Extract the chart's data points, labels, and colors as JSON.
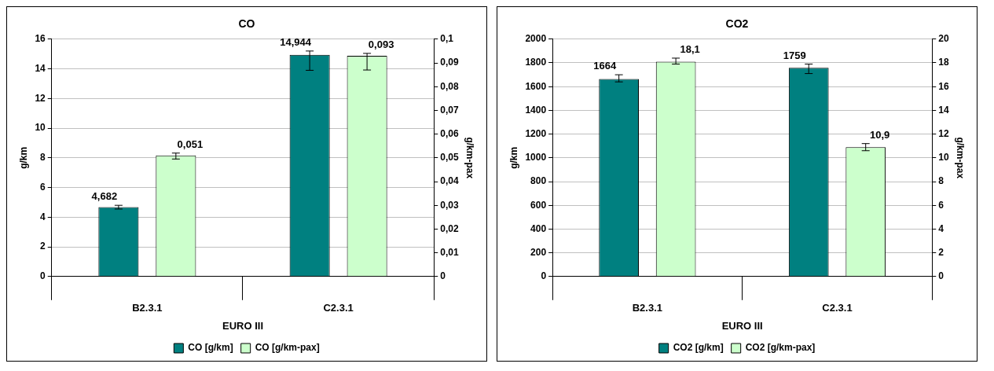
{
  "chart_data": [
    {
      "type": "bar",
      "title": "CO",
      "xlabel": "EURO III",
      "ylabel": "g/km",
      "y2label": "g/km-pax",
      "categories": [
        "B2.3.1",
        "C2.3.1"
      ],
      "series": [
        {
          "name": "CO [g/km]",
          "color": "#008080",
          "values": [
            4.682,
            14.944
          ],
          "value_labels": [
            "4,682",
            "14,944"
          ],
          "errors": [
            [
              4.55,
              4.8
            ],
            [
              13.9,
              15.2
            ]
          ]
        },
        {
          "name": "CO [g/km-pax]",
          "color": "#ccffcc",
          "axis": "y2",
          "values": [
            0.051,
            0.093
          ],
          "value_labels": [
            "0,051",
            "0,093"
          ],
          "errors": [
            [
              0.0495,
              0.052
            ],
            [
              0.087,
              0.094
            ]
          ]
        }
      ],
      "ylim": [
        0,
        16
      ],
      "yticks": [
        0,
        2,
        4,
        6,
        8,
        10,
        12,
        14,
        16
      ],
      "y2lim": [
        0,
        0.1
      ],
      "y2ticks": [
        0,
        {
          "value": 0.01,
          "label": "0,01"
        },
        {
          "value": 0.02,
          "label": "0,02"
        },
        {
          "value": 0.03,
          "label": "0,03"
        },
        {
          "value": 0.04,
          "label": "0,04"
        },
        {
          "value": 0.05,
          "label": "0,05"
        },
        {
          "value": 0.06,
          "label": "0,06"
        },
        {
          "value": 0.07,
          "label": "0,07"
        },
        {
          "value": 0.08,
          "label": "0,08"
        },
        {
          "value": 0.09,
          "label": "0,09"
        },
        {
          "value": 0.1,
          "label": "0,1"
        }
      ],
      "grid": "y",
      "legend": "bottom"
    },
    {
      "type": "bar",
      "title": "CO2",
      "xlabel": "EURO III",
      "ylabel": "g/km",
      "y2label": "g/km-pax",
      "categories": [
        "B2.3.1",
        "C2.3.1"
      ],
      "series": [
        {
          "name": "CO2 [g/km]",
          "color": "#008080",
          "values": [
            1664,
            1759
          ],
          "value_labels": [
            "1664",
            "1759"
          ],
          "errors": [
            [
              1640,
              1700
            ],
            [
              1710,
              1790
            ]
          ]
        },
        {
          "name": "CO2 [g/km-pax]",
          "color": "#ccffcc",
          "axis": "y2",
          "values": [
            18.1,
            10.9
          ],
          "value_labels": [
            "18,1",
            "10,9"
          ],
          "errors": [
            [
              17.9,
              18.4
            ],
            [
              10.6,
              11.2
            ]
          ]
        }
      ],
      "ylim": [
        0,
        2000
      ],
      "yticks": [
        0,
        200,
        400,
        600,
        800,
        1000,
        1200,
        1400,
        1600,
        1800,
        2000
      ],
      "y2lim": [
        0,
        20
      ],
      "y2ticks": [
        0,
        2,
        4,
        6,
        8,
        10,
        12,
        14,
        16,
        18,
        20
      ],
      "grid": "y",
      "legend": "bottom"
    }
  ]
}
